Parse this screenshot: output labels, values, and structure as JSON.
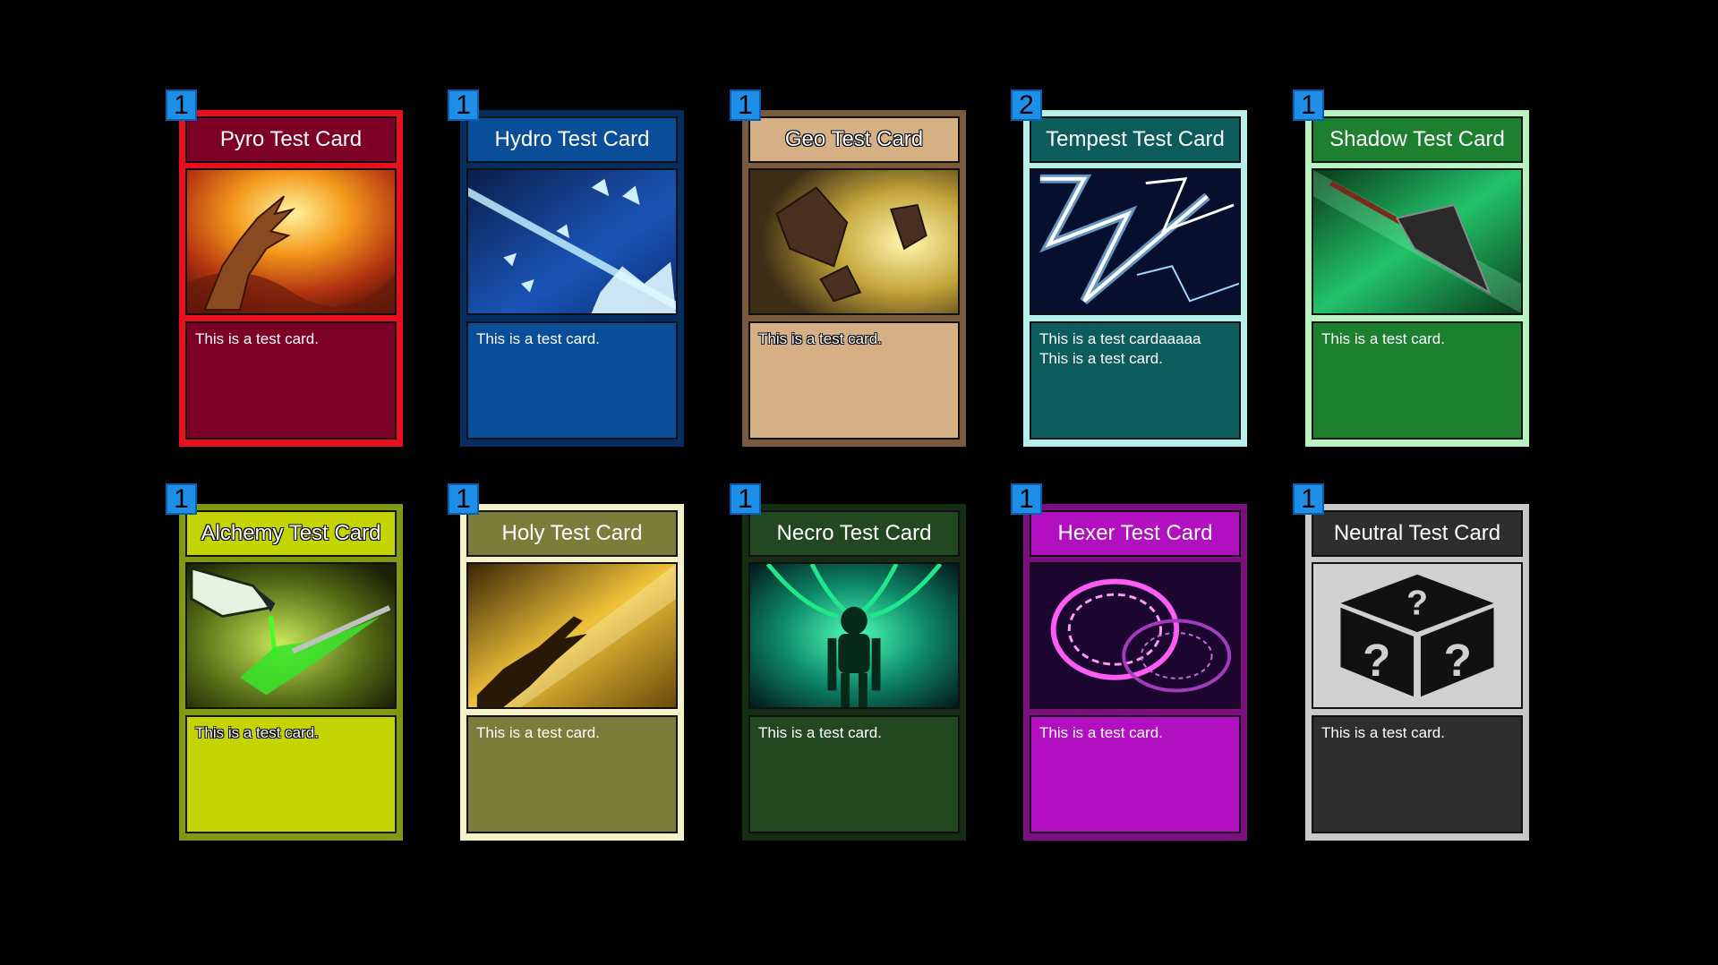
{
  "cards": [
    {
      "title": "Pyro Test Card",
      "description": "This is a test card.",
      "count": "1",
      "art": "fire-hand-art",
      "colors": {
        "frame": "#e8101c",
        "title_bg": "#7d0026",
        "desc_bg": "#7d0026"
      }
    },
    {
      "title": "Hydro Test Card",
      "description": "This is a test card.",
      "count": "1",
      "art": "ice-shards-art",
      "colors": {
        "frame": "#062d5f",
        "title_bg": "#0a4d98",
        "desc_bg": "#0a4d98"
      }
    },
    {
      "title": "Geo Test Card",
      "description": "This is a test card.",
      "count": "1",
      "art": "rock-shards-art",
      "colors": {
        "frame": "#7b5a3c",
        "title_bg": "#d6b085",
        "desc_bg": "#d6b085"
      }
    },
    {
      "title": "Tempest Test Card",
      "description": "This is a test cardaaaaa This is a test card.",
      "count": "2",
      "art": "lightning-art",
      "colors": {
        "frame": "#b6f0ec",
        "title_bg": "#0c5c5c",
        "desc_bg": "#0c5c5c"
      }
    },
    {
      "title": "Shadow Test Card",
      "description": "This is a test card.",
      "count": "1",
      "art": "dagger-art",
      "colors": {
        "frame": "#b9f3c3",
        "title_bg": "#1c8030",
        "desc_bg": "#1c8030"
      }
    },
    {
      "title": "Alchemy Test Card",
      "description": "This is a test card.",
      "count": "1",
      "art": "potion-art",
      "colors": {
        "frame": "#809812",
        "title_bg": "#c3d400",
        "desc_bg": "#c3d400"
      }
    },
    {
      "title": "Holy Test Card",
      "description": "This is a test card.",
      "count": "1",
      "art": "holy-hand-art",
      "colors": {
        "frame": "#f5f2c8",
        "title_bg": "#7b7d3a",
        "desc_bg": "#7b7d3a"
      }
    },
    {
      "title": "Necro Test Card",
      "description": "This is a test card.",
      "count": "1",
      "art": "skeleton-art",
      "colors": {
        "frame": "#152d12",
        "title_bg": "#224822",
        "desc_bg": "#224822"
      }
    },
    {
      "title": "Hexer Test Card",
      "description": "This is a test card.",
      "count": "1",
      "art": "hex-circle-art",
      "colors": {
        "frame": "#7c0e81",
        "title_bg": "#b20fc0",
        "desc_bg": "#b20fc0"
      }
    },
    {
      "title": "Neutral Test Card",
      "description": "This is a test card.",
      "count": "1",
      "art": "mystery-box-art",
      "colors": {
        "frame": "#c8c8c8",
        "title_bg": "#2e2e2e",
        "desc_bg": "#2e2e2e"
      }
    }
  ]
}
